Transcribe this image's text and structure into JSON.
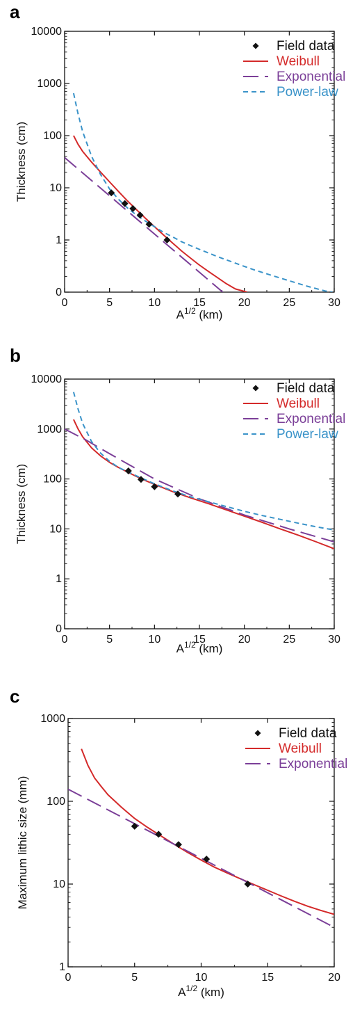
{
  "panels": {
    "a": {
      "label": "a"
    },
    "b": {
      "label": "b"
    },
    "c": {
      "label": "c"
    }
  },
  "colors": {
    "field": "#111111",
    "weibull": "#d42a2a",
    "exponential": "#7b3f98",
    "powerlaw": "#3a93c9"
  },
  "chart_data": [
    {
      "type": "line",
      "panel": "a",
      "xlabel": "A1/2 (km)",
      "ylabel": "Thickness (cm)",
      "xlim": [
        0,
        30
      ],
      "ylim_log10": [
        -1,
        4
      ],
      "y_scale": "log",
      "x_ticks": [
        "0",
        "5",
        "10",
        "15",
        "20",
        "25",
        "30"
      ],
      "y_ticks": [
        "0",
        "1",
        "10",
        "100",
        "1000",
        "10000"
      ],
      "legend_position": "top-right",
      "series": [
        {
          "name": "Field data",
          "kind": "scatter",
          "x": [
            5.2,
            6.7,
            7.6,
            8.4,
            9.4,
            11.4
          ],
          "y": [
            8,
            5,
            4,
            3,
            2,
            1
          ]
        },
        {
          "name": "Weibull",
          "kind": "line",
          "x": [
            1,
            1.5,
            2,
            3,
            4,
            5,
            6,
            7,
            8,
            9,
            10,
            11,
            12,
            13,
            14,
            15,
            16,
            17,
            18,
            19,
            20.3
          ],
          "y": [
            100,
            68,
            50,
            31,
            20,
            13,
            8.5,
            5.6,
            3.8,
            2.6,
            1.8,
            1.25,
            0.88,
            0.62,
            0.45,
            0.33,
            0.25,
            0.19,
            0.145,
            0.115,
            0.1
          ]
        },
        {
          "name": "Exponential",
          "kind": "line",
          "x": [
            0,
            17.6
          ],
          "y": [
            38,
            0.1
          ]
        },
        {
          "name": "Power-law",
          "kind": "line",
          "x": [
            1,
            1.5,
            2,
            3,
            4,
            5,
            6,
            7,
            8,
            9,
            10,
            11,
            12,
            13,
            14,
            15,
            17,
            19,
            21,
            23,
            25,
            27,
            29,
            29.8
          ],
          "y": [
            650,
            260,
            120,
            40,
            18,
            9.5,
            6,
            4.1,
            3,
            2.3,
            1.8,
            1.4,
            1.15,
            0.93,
            0.78,
            0.66,
            0.48,
            0.36,
            0.27,
            0.21,
            0.165,
            0.13,
            0.105,
            0.1
          ]
        }
      ]
    },
    {
      "type": "line",
      "panel": "b",
      "xlabel": "A1/2 (km)",
      "ylabel": "Thickness (cm)",
      "xlim": [
        0,
        30
      ],
      "ylim_log10": [
        -1,
        4
      ],
      "y_scale": "log",
      "x_ticks": [
        "0",
        "5",
        "10",
        "15",
        "20",
        "25",
        "30"
      ],
      "y_ticks": [
        "0",
        "1",
        "10",
        "100",
        "1000",
        "10000"
      ],
      "legend_position": "top-right",
      "series": [
        {
          "name": "Field data",
          "kind": "scatter",
          "x": [
            7.1,
            8.5,
            10.0,
            12.6
          ],
          "y": [
            145,
            98,
            70,
            50
          ]
        },
        {
          "name": "Weibull",
          "kind": "line",
          "x": [
            1,
            1.5,
            2,
            3,
            4,
            5,
            6,
            7,
            8,
            9,
            10,
            12,
            14,
            16,
            18,
            20,
            22,
            24,
            26,
            28,
            30
          ],
          "y": [
            1550,
            1000,
            700,
            420,
            290,
            215,
            170,
            138,
            112,
            93,
            78,
            56,
            42,
            32,
            24,
            18,
            13.5,
            10,
            7.5,
            5.5,
            4
          ]
        },
        {
          "name": "Exponential",
          "kind": "line",
          "x": [
            0,
            2.4,
            5,
            10,
            15,
            20,
            25,
            30
          ],
          "y": [
            1000,
            600,
            320,
            100,
            40,
            19,
            10,
            5.5
          ]
        },
        {
          "name": "Power-law",
          "kind": "line",
          "x": [
            1,
            1.5,
            2,
            3,
            4,
            5,
            6,
            7,
            8,
            10,
            12,
            14,
            16,
            18,
            20,
            22,
            24,
            26,
            28,
            30
          ],
          "y": [
            5500,
            2500,
            1300,
            560,
            330,
            225,
            170,
            140,
            115,
            80,
            58,
            44,
            35,
            28,
            22.5,
            18.5,
            15.5,
            13,
            11,
            9.5
          ]
        }
      ]
    },
    {
      "type": "line",
      "panel": "c",
      "xlabel": "A1/2 (km)",
      "ylabel": "Maximum lithic size (mm)",
      "xlim": [
        0,
        20
      ],
      "ylim_log10": [
        0,
        3
      ],
      "y_scale": "log",
      "x_ticks": [
        "0",
        "5",
        "10",
        "15",
        "20"
      ],
      "y_ticks": [
        "1",
        "10",
        "100",
        "1000"
      ],
      "legend_position": "top-right",
      "series": [
        {
          "name": "Field data",
          "kind": "scatter",
          "x": [
            5.0,
            6.8,
            8.3,
            10.4,
            13.5
          ],
          "y": [
            50,
            40,
            30,
            20,
            10
          ]
        },
        {
          "name": "Weibull",
          "kind": "line",
          "x": [
            1,
            1.5,
            2,
            2.5,
            3,
            4,
            5,
            6,
            7,
            8,
            9,
            10,
            11,
            12,
            13,
            14,
            15,
            16,
            17,
            18,
            19,
            20
          ],
          "y": [
            430,
            270,
            190,
            150,
            120,
            85,
            62,
            48,
            38,
            30,
            24,
            19.5,
            16,
            13.5,
            11.5,
            9.8,
            8.4,
            7.2,
            6.2,
            5.4,
            4.8,
            4.3
          ]
        },
        {
          "name": "Exponential",
          "kind": "line",
          "x": [
            0,
            20
          ],
          "y": [
            140,
            3
          ]
        }
      ]
    }
  ]
}
